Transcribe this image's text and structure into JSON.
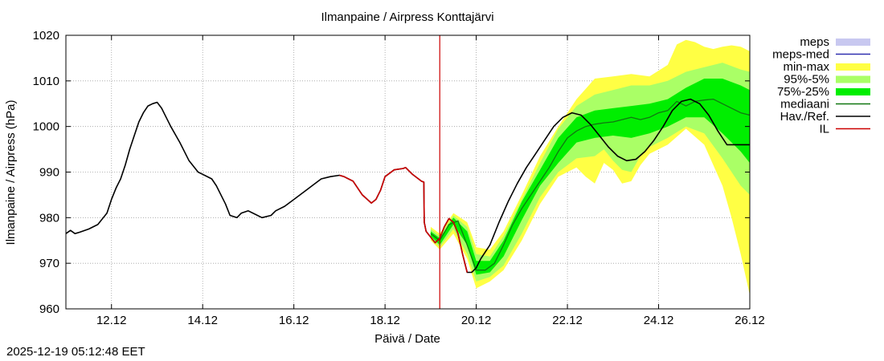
{
  "chart_data": {
    "type": "line",
    "title": "Ilmanpaine / Airpress Konttajärvi",
    "xlabel": "Päivä / Date",
    "ylabel": "Ilmanpaine / Airpress (hPa)",
    "ylim": [
      960,
      1020
    ],
    "xlim": [
      11.0,
      26.0
    ],
    "y_ticks": [
      960,
      970,
      980,
      990,
      1000,
      1010,
      1020
    ],
    "x_ticks": [
      {
        "x": 12,
        "label": "12.12"
      },
      {
        "x": 14,
        "label": "14.12"
      },
      {
        "x": 16,
        "label": "16.12"
      },
      {
        "x": 18,
        "label": "18.12"
      },
      {
        "x": 20,
        "label": "20.12"
      },
      {
        "x": 22,
        "label": "22.12"
      },
      {
        "x": 24,
        "label": "24.12"
      },
      {
        "x": 26,
        "label": "26.12"
      }
    ],
    "grid": true,
    "now_x": 19.2,
    "legend": [
      {
        "label": "meps",
        "color": "#c8c8f0",
        "kind": "box"
      },
      {
        "label": "meps-med",
        "color": "#3030b0",
        "kind": "line"
      },
      {
        "label": "min-max",
        "color": "#ffff44",
        "kind": "box"
      },
      {
        "label": "95%-5%",
        "color": "#aaff66",
        "kind": "box"
      },
      {
        "label": "75%-25%",
        "color": "#00ee00",
        "kind": "box"
      },
      {
        "label": "mediaani",
        "color": "#117711",
        "kind": "line"
      },
      {
        "label": "Hav./Ref.",
        "color": "#000000",
        "kind": "line"
      },
      {
        "label": "IL",
        "color": "#cc0000",
        "kind": "line"
      }
    ],
    "series": [
      {
        "name": "Hav./Ref.",
        "x": [
          11.0,
          11.1,
          11.2,
          11.3,
          11.5,
          11.7,
          11.9,
          12.0,
          12.1,
          12.2,
          12.3,
          12.4,
          12.5,
          12.6,
          12.7,
          12.8,
          12.9,
          13.0,
          13.1,
          13.2,
          13.3,
          13.5,
          13.7,
          13.9,
          14.0,
          14.2,
          14.3,
          14.5,
          14.6,
          14.75,
          14.85,
          15.0,
          15.1,
          15.3,
          15.5,
          15.6,
          15.8,
          16.0,
          16.2,
          16.4,
          16.6,
          16.8,
          17.0,
          17.1,
          17.3,
          17.5,
          17.7,
          17.8,
          17.9,
          18.0,
          18.2,
          18.4,
          18.45,
          18.6,
          18.8,
          18.85,
          18.86,
          18.9,
          19.1,
          19.2,
          19.3,
          19.4,
          19.5,
          19.6,
          19.7,
          19.8,
          19.9,
          20.0,
          20.05,
          20.1,
          20.3,
          20.5,
          20.7,
          20.9,
          21.1,
          21.3,
          21.5,
          21.7,
          21.9,
          22.1,
          22.3,
          22.5,
          22.7,
          22.9,
          23.1,
          23.3,
          23.5,
          23.7,
          23.9,
          24.1,
          24.3,
          24.5,
          24.7,
          24.9,
          25.1,
          25.3,
          25.5,
          25.7,
          25.8,
          25.9,
          26.0
        ],
        "values": [
          976.5,
          977.2,
          976.5,
          976.8,
          977.5,
          978.5,
          981.0,
          984.0,
          986.5,
          988.5,
          991.5,
          995.0,
          998.0,
          1001.0,
          1003.0,
          1004.5,
          1005.0,
          1005.3,
          1004.0,
          1002.0,
          1000.0,
          996.5,
          992.5,
          990.0,
          989.5,
          988.5,
          987.0,
          983.0,
          980.5,
          980.0,
          981.0,
          981.5,
          981.0,
          980.0,
          980.5,
          981.5,
          982.5,
          984.0,
          985.5,
          987.0,
          988.5,
          989.0,
          989.3,
          989.0,
          988.0,
          985.0,
          983.2,
          984.0,
          986.0,
          989.0,
          990.5,
          990.8,
          991.0,
          989.5,
          988.0,
          987.8,
          979.0,
          977.0,
          974.5,
          975.5,
          978.0,
          979.8,
          979.0,
          976.5,
          972.0,
          968.0,
          968.0,
          969.0,
          970.0,
          971.0,
          974.0,
          979.0,
          983.5,
          987.5,
          991.0,
          994.0,
          997.0,
          1000.0,
          1002.0,
          1003.0,
          1002.5,
          1000.5,
          998.0,
          995.5,
          993.5,
          992.5,
          992.8,
          994.5,
          997.0,
          1000.0,
          1003.5,
          1005.5,
          1006.0,
          1005.0,
          1002.5,
          999.0,
          996.0,
          996.0,
          996.0,
          996.0,
          996.0
        ]
      },
      {
        "name": "IL",
        "x": [
          17.0,
          17.1,
          17.3,
          17.5,
          17.7,
          17.8,
          17.9,
          18.0,
          18.2,
          18.4,
          18.45,
          18.6,
          18.8,
          18.85,
          18.86,
          18.9,
          19.1,
          19.2,
          19.3,
          19.4,
          19.5,
          19.6,
          19.7,
          19.8
        ],
        "values": [
          989.3,
          989.0,
          988.0,
          985.0,
          983.2,
          984.0,
          986.0,
          989.0,
          990.5,
          990.8,
          991.0,
          989.5,
          988.0,
          987.8,
          979.0,
          977.0,
          974.5,
          975.5,
          978.0,
          979.8,
          979.0,
          976.5,
          972.0,
          968.0
        ]
      },
      {
        "name": "mediaani",
        "x": [
          19.0,
          19.2,
          19.4,
          19.6,
          19.8,
          20.0,
          20.2,
          20.4,
          20.6,
          20.8,
          21.0,
          21.2,
          21.4,
          21.6,
          21.8,
          22.0,
          22.2,
          22.4,
          22.6,
          22.8,
          23.0,
          23.2,
          23.4,
          23.6,
          23.8,
          24.0,
          24.2,
          24.4,
          24.6,
          24.8,
          25.0,
          25.2,
          25.4,
          25.6,
          25.8,
          26.0
        ],
        "values": [
          976.5,
          975.0,
          978.5,
          979.3,
          974.0,
          968.5,
          968.5,
          970.0,
          974.0,
          978.5,
          982.0,
          985.0,
          988.0,
          991.0,
          994.5,
          997.5,
          999.0,
          1000.0,
          1000.5,
          1000.8,
          1001.0,
          1001.5,
          1002.0,
          1001.5,
          1002.0,
          1003.0,
          1003.5,
          1005.5,
          1004.5,
          1005.5,
          1005.8,
          1006.0,
          1005.0,
          1004.0,
          1003.0,
          1002.5
        ]
      },
      {
        "name": "min-max upper",
        "x": [
          19.0,
          19.2,
          19.5,
          19.8,
          20.0,
          20.3,
          20.6,
          21.0,
          21.4,
          21.8,
          22.2,
          22.6,
          23.0,
          23.4,
          23.8,
          24.2,
          24.4,
          24.6,
          24.8,
          25.0,
          25.2,
          25.4,
          25.6,
          25.8,
          26.0
        ],
        "values": [
          978.0,
          976.5,
          981.0,
          979.0,
          973.5,
          973.0,
          977.0,
          985.0,
          993.5,
          1000.0,
          1006.0,
          1010.5,
          1011.0,
          1011.5,
          1011.0,
          1013.5,
          1018.0,
          1019.0,
          1018.5,
          1017.5,
          1017.0,
          1017.5,
          1017.8,
          1017.5,
          1016.5
        ]
      },
      {
        "name": "min-max lower",
        "x": [
          19.0,
          19.2,
          19.5,
          19.8,
          20.0,
          20.3,
          20.6,
          21.0,
          21.4,
          21.8,
          22.2,
          22.4,
          22.6,
          22.8,
          23.0,
          23.2,
          23.4,
          23.6,
          23.8,
          24.2,
          24.6,
          25.0,
          25.4,
          25.6,
          25.8,
          26.0
        ],
        "values": [
          975.0,
          973.0,
          976.5,
          971.0,
          964.5,
          966.0,
          968.5,
          975.0,
          983.0,
          989.0,
          991.0,
          989.0,
          987.5,
          992.0,
          990.5,
          987.5,
          988.0,
          991.5,
          994.0,
          996.0,
          999.5,
          996.0,
          987.0,
          980.0,
          972.0,
          963.0
        ]
      },
      {
        "name": "95%-5% upper",
        "x": [
          19.0,
          19.2,
          19.5,
          19.8,
          20.0,
          20.3,
          20.6,
          21.0,
          21.4,
          21.8,
          22.2,
          22.6,
          23.0,
          23.4,
          23.8,
          24.2,
          24.6,
          25.0,
          25.4,
          25.8,
          26.0
        ],
        "values": [
          977.5,
          976.0,
          980.5,
          978.0,
          972.0,
          971.5,
          976.0,
          984.0,
          992.0,
          999.5,
          1004.5,
          1007.0,
          1008.0,
          1009.0,
          1009.0,
          1010.0,
          1012.0,
          1013.0,
          1014.0,
          1012.5,
          1012.0
        ]
      },
      {
        "name": "95%-5% lower",
        "x": [
          19.0,
          19.2,
          19.5,
          19.8,
          20.0,
          20.3,
          20.6,
          21.0,
          21.4,
          21.8,
          22.2,
          22.6,
          22.8,
          23.0,
          23.2,
          23.4,
          23.6,
          23.8,
          24.2,
          24.6,
          25.0,
          25.4,
          25.8,
          26.0
        ],
        "values": [
          975.5,
          973.5,
          977.5,
          972.0,
          966.0,
          967.0,
          969.5,
          976.5,
          984.5,
          990.0,
          993.0,
          993.5,
          995.0,
          992.5,
          990.5,
          990.0,
          993.5,
          995.5,
          997.5,
          1000.0,
          998.5,
          993.0,
          987.0,
          985.0
        ]
      },
      {
        "name": "75%-25% upper",
        "x": [
          19.0,
          19.2,
          19.5,
          19.8,
          20.0,
          20.3,
          20.6,
          21.0,
          21.4,
          21.8,
          22.2,
          22.6,
          23.0,
          23.4,
          23.8,
          24.2,
          24.6,
          25.0,
          25.4,
          25.8,
          26.0
        ],
        "values": [
          977.0,
          975.5,
          980.0,
          977.0,
          970.5,
          970.5,
          975.0,
          983.5,
          990.5,
          997.5,
          1002.0,
          1003.5,
          1004.0,
          1004.5,
          1005.0,
          1006.0,
          1008.5,
          1010.5,
          1010.5,
          1009.0,
          1008.0
        ]
      },
      {
        "name": "75%-25% lower",
        "x": [
          19.0,
          19.2,
          19.5,
          19.8,
          20.0,
          20.3,
          20.6,
          21.0,
          21.4,
          21.8,
          22.2,
          22.6,
          23.0,
          23.4,
          23.8,
          24.2,
          24.6,
          25.0,
          25.4,
          25.8,
          26.0
        ],
        "values": [
          976.0,
          974.0,
          978.5,
          974.0,
          967.5,
          968.0,
          971.5,
          979.5,
          987.0,
          992.0,
          996.5,
          997.5,
          998.0,
          997.5,
          998.5,
          1000.0,
          1002.0,
          1002.0,
          998.5,
          994.5,
          992.0
        ]
      }
    ]
  },
  "footer": {
    "timestamp": "2025-12-19 05:12:48 EET"
  }
}
